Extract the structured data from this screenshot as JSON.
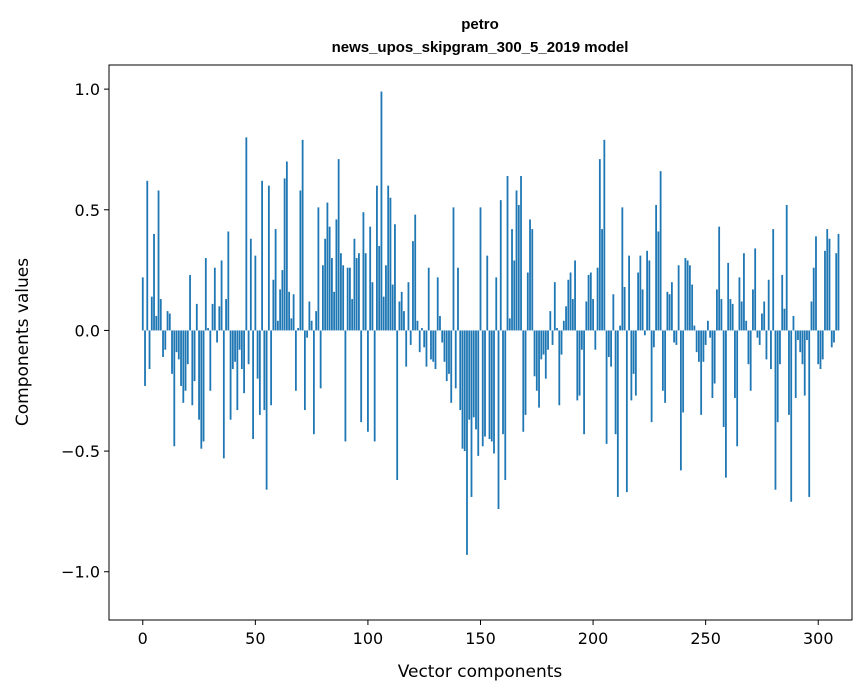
{
  "chart_data": {
    "type": "bar",
    "title": "petro",
    "subtitle": "news_upos_skipgram_300_5_2019 model",
    "xlabel": "Vector components",
    "ylabel": "Components values",
    "xlim": [
      -15,
      315
    ],
    "ylim": [
      -1.2,
      1.1
    ],
    "xticks": [
      0,
      50,
      100,
      150,
      200,
      250,
      300
    ],
    "xtick_labels": [
      "0",
      "50",
      "100",
      "150",
      "200",
      "250",
      "300"
    ],
    "yticks": [
      1.0,
      0.5,
      0.0,
      -0.5,
      -1.0
    ],
    "ytick_labels": [
      "1.0",
      "0.5",
      "0.0",
      "−0.5",
      "−1.0"
    ],
    "bar_color": "#1f77b4",
    "values": [
      0.22,
      -0.23,
      0.62,
      -0.16,
      0.14,
      0.4,
      0.06,
      0.58,
      0.13,
      -0.11,
      -0.08,
      0.08,
      0.07,
      -0.18,
      -0.48,
      -0.09,
      -0.12,
      -0.23,
      -0.3,
      -0.25,
      -0.14,
      0.23,
      -0.31,
      -0.21,
      0.11,
      -0.37,
      -0.49,
      -0.46,
      0.3,
      0.01,
      -0.25,
      0.11,
      0.26,
      -0.05,
      0.1,
      0.29,
      -0.53,
      0.13,
      0.41,
      -0.37,
      -0.16,
      -0.13,
      -0.33,
      -0.08,
      -0.16,
      -0.26,
      0.8,
      -0.14,
      0.38,
      -0.45,
      0.31,
      -0.2,
      -0.35,
      0.62,
      -0.33,
      -0.66,
      0.6,
      -0.31,
      0.21,
      0.42,
      0.04,
      0.17,
      0.25,
      0.63,
      0.7,
      0.16,
      0.05,
      0.15,
      -0.25,
      0.01,
      0.58,
      0.79,
      -0.33,
      -0.03,
      0.12,
      0.04,
      -0.43,
      0.08,
      0.51,
      -0.24,
      0.27,
      0.38,
      0.53,
      0.43,
      0.3,
      0.16,
      0.46,
      0.71,
      0.32,
      0.27,
      -0.46,
      0.26,
      0.26,
      0.13,
      0.38,
      0.3,
      0.32,
      -0.38,
      0.49,
      0.32,
      -0.42,
      0.43,
      0.2,
      -0.46,
      0.6,
      0.35,
      0.99,
      0.14,
      0.27,
      0.6,
      0.55,
      0.19,
      0.44,
      -0.62,
      0.12,
      0.16,
      0.08,
      -0.15,
      0.2,
      -0.06,
      0.37,
      0.48,
      0.04,
      -0.09,
      0.01,
      -0.07,
      -0.15,
      0.26,
      -0.12,
      -0.13,
      -0.16,
      0.22,
      0.06,
      -0.05,
      -0.13,
      -0.21,
      -0.18,
      -0.3,
      0.51,
      -0.24,
      0.26,
      -0.33,
      -0.49,
      -0.5,
      -0.93,
      -0.37,
      -0.69,
      -0.36,
      -0.41,
      -0.52,
      0.51,
      -0.48,
      -0.44,
      0.31,
      -0.45,
      -0.46,
      -0.51,
      0.22,
      -0.74,
      0.54,
      -0.43,
      -0.62,
      0.64,
      0.05,
      0.42,
      0.29,
      0.58,
      0.52,
      0.64,
      -0.42,
      -0.35,
      0.24,
      0.46,
      0.42,
      -0.19,
      -0.25,
      -0.32,
      -0.12,
      -0.1,
      -0.2,
      -0.08,
      0.08,
      -0.06,
      0.2,
      0.01,
      -0.31,
      -0.1,
      0.04,
      0.1,
      0.21,
      0.24,
      0.13,
      0.29,
      -0.29,
      -0.27,
      -0.08,
      -0.43,
      0.12,
      0.23,
      0.24,
      0.13,
      -0.08,
      0.26,
      0.71,
      0.42,
      0.79,
      -0.47,
      -0.11,
      -0.15,
      0.15,
      -0.43,
      -0.69,
      0.02,
      0.51,
      0.18,
      -0.67,
      0.31,
      -0.29,
      -0.18,
      -0.27,
      0.24,
      0.31,
      0.17,
      -0.02,
      0.33,
      0.29,
      -0.38,
      -0.07,
      0.52,
      0.41,
      0.66,
      -0.25,
      -0.3,
      0.16,
      0.15,
      0.2,
      -0.05,
      -0.06,
      0.27,
      -0.58,
      -0.34,
      0.3,
      0.29,
      0.27,
      0.19,
      0.02,
      -0.09,
      -0.13,
      -0.35,
      -0.13,
      -0.06,
      0.04,
      -0.03,
      -0.28,
      -0.22,
      0.17,
      0.43,
      0.13,
      -0.4,
      -0.61,
      0.28,
      0.13,
      0.11,
      -0.28,
      -0.48,
      0.22,
      0.12,
      0.32,
      0.04,
      -0.14,
      -0.25,
      0.17,
      0.34,
      -0.03,
      -0.06,
      0.07,
      0.12,
      -0.12,
      0.21,
      -0.16,
      0.42,
      -0.66,
      -0.38,
      -0.14,
      0.23,
      0.09,
      0.52,
      -0.35,
      -0.71,
      0.06,
      -0.28,
      -0.04,
      -0.09,
      -0.14,
      -0.27,
      -0.04,
      -0.69,
      0.12,
      0.26,
      0.39,
      -0.14,
      -0.16,
      -0.12,
      0.33,
      0.42,
      0.38,
      -0.07,
      -0.05,
      0.32,
      0.4
    ]
  }
}
